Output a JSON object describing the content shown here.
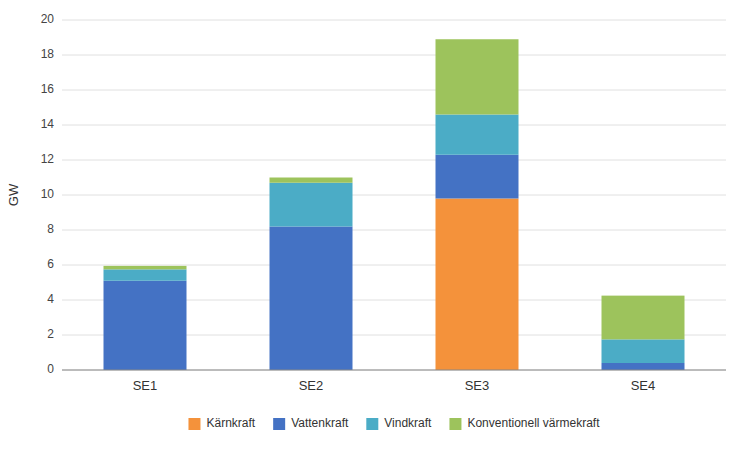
{
  "chart_data": {
    "type": "bar",
    "stacked": true,
    "categories": [
      "SE1",
      "SE2",
      "SE3",
      "SE4"
    ],
    "series": [
      {
        "name": "Kärnkraft",
        "color": "#f4923b",
        "values": [
          0,
          0,
          9.8,
          0
        ]
      },
      {
        "name": "Vattenkraft",
        "color": "#4472c4",
        "values": [
          5.1,
          8.2,
          2.5,
          0.4
        ]
      },
      {
        "name": "Vindkraft",
        "color": "#4bacc6",
        "values": [
          0.65,
          2.5,
          2.3,
          1.35
        ]
      },
      {
        "name": "Konventionell värmekraft",
        "color": "#9dc35c",
        "values": [
          0.2,
          0.3,
          4.3,
          2.5
        ]
      }
    ],
    "ylabel": "GW",
    "ylim": [
      0,
      20
    ],
    "yticks": [
      0,
      2,
      4,
      6,
      8,
      10,
      12,
      14,
      16,
      18,
      20
    ],
    "grid": true,
    "legend": "bottom"
  }
}
